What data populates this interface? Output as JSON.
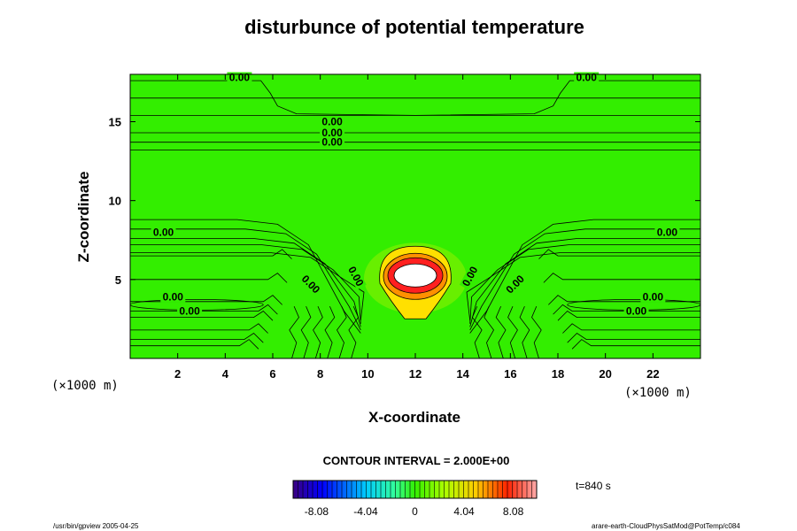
{
  "chart_data": {
    "type": "heatmap",
    "title": "disturbunce of potential temperature",
    "xlabel": "X-coordinate",
    "ylabel": "Z-coordinate",
    "x_unit": "(×1000 m)",
    "y_unit": "(×1000 m)",
    "xlim": [
      0,
      24
    ],
    "ylim": [
      0,
      18
    ],
    "x_ticks": [
      2,
      4,
      6,
      8,
      10,
      12,
      14,
      16,
      18,
      20,
      22
    ],
    "y_ticks": [
      5,
      10,
      15
    ],
    "contour_interval_text": "CONTOUR INTERVAL = 2.000E+00",
    "time_text": "t=840 s",
    "colorbar": {
      "range": [
        -10,
        10
      ],
      "tick_values": [
        -8.08,
        -4.04,
        0,
        4.04,
        8.08
      ],
      "tick_labels": [
        "-8.08",
        "-4.04",
        "0",
        "4.04",
        "8.08"
      ]
    },
    "contour_labels": [
      {
        "text": "0.00",
        "x": 4.6,
        "z": 17.8
      },
      {
        "text": "0.00",
        "x": 19.2,
        "z": 17.8
      },
      {
        "text": "0.00",
        "x": 8.5,
        "z": 15.0
      },
      {
        "text": "0.00",
        "x": 8.5,
        "z": 14.3
      },
      {
        "text": "0.00",
        "x": 8.5,
        "z": 13.7
      },
      {
        "text": "0.00",
        "x": 1.4,
        "z": 8.0
      },
      {
        "text": "0.00",
        "x": 22.6,
        "z": 8.0
      },
      {
        "text": "0.00",
        "x": 1.8,
        "z": 3.9
      },
      {
        "text": "0.00",
        "x": 22.0,
        "z": 3.9
      },
      {
        "text": "0.00",
        "x": 2.5,
        "z": 3.0
      },
      {
        "text": "0.00",
        "x": 21.3,
        "z": 3.0
      },
      {
        "text": "0.00",
        "x": 9.5,
        "z": 5.2,
        "angle": 62
      },
      {
        "text": "0.00",
        "x": 7.6,
        "z": 4.7,
        "angle": 45
      },
      {
        "text": "0.00",
        "x": 14.3,
        "z": 5.2,
        "angle": -62
      },
      {
        "text": "0.00",
        "x": 16.2,
        "z": 4.7,
        "angle": -45
      }
    ],
    "anomaly": {
      "center_x": 12.0,
      "center_z": 5.2,
      "max_value": 10
    },
    "footer_left": "/usr/bin/gpview 2005-04-25",
    "footer_right": "arare-earth-CloudPhysSatMod@PotTemp/c084"
  }
}
